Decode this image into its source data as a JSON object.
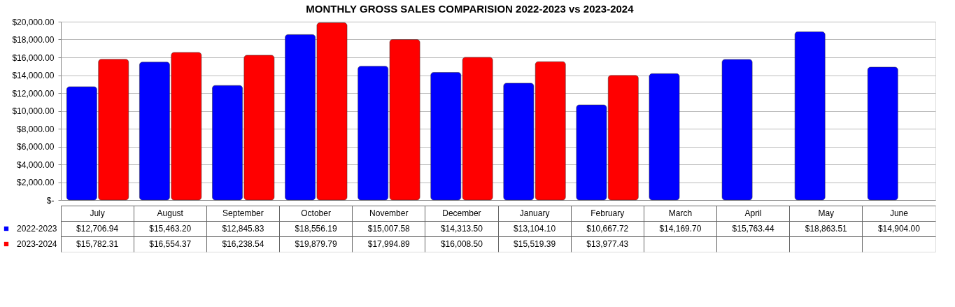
{
  "chart_data": {
    "type": "bar",
    "title": "MONTHLY GROSS SALES COMPARISION 2022-2023 vs 2023-2024",
    "categories": [
      "July",
      "August",
      "September",
      "October",
      "November",
      "December",
      "January",
      "February",
      "March",
      "April",
      "May",
      "June"
    ],
    "series": [
      {
        "name": "2022-2023",
        "color": "#0000ff",
        "values": [
          12706.94,
          15463.2,
          12845.83,
          18556.19,
          15007.58,
          14313.5,
          13104.1,
          10667.72,
          14169.7,
          15763.44,
          18863.51,
          14904.0
        ],
        "value_labels": [
          "$12,706.94",
          "$15,463.20",
          "$12,845.83",
          "$18,556.19",
          "$15,007.58",
          "$14,313.50",
          "$13,104.10",
          "$10,667.72",
          "$14,169.70",
          "$15,763.44",
          "$18,863.51",
          "$14,904.00"
        ]
      },
      {
        "name": "2023-2024",
        "color": "#ff0000",
        "values": [
          15782.31,
          16554.37,
          16238.54,
          19879.79,
          17994.89,
          16008.5,
          15519.39,
          13977.43,
          null,
          null,
          null,
          null
        ],
        "value_labels": [
          "$15,782.31",
          "$16,554.37",
          "$16,238.54",
          "$19,879.79",
          "$17,994.89",
          "$16,008.50",
          "$15,519.39",
          "$13,977.43",
          null,
          null,
          null,
          null
        ]
      }
    ],
    "ylim": [
      0,
      20000
    ],
    "yticks": [
      {
        "value": 0,
        "label": "$-"
      },
      {
        "value": 2000,
        "label": "$2,000.00"
      },
      {
        "value": 4000,
        "label": "$4,000.00"
      },
      {
        "value": 6000,
        "label": "$6,000.00"
      },
      {
        "value": 8000,
        "label": "$8,000.00"
      },
      {
        "value": 10000,
        "label": "$10,000.00"
      },
      {
        "value": 12000,
        "label": "$12,000.00"
      },
      {
        "value": 14000,
        "label": "$14,000.00"
      },
      {
        "value": 16000,
        "label": "$16,000.00"
      },
      {
        "value": 18000,
        "label": "$18,000.00"
      },
      {
        "value": 20000,
        "label": "$20,000.00"
      }
    ],
    "grid": "y",
    "legend": "bottom left"
  }
}
